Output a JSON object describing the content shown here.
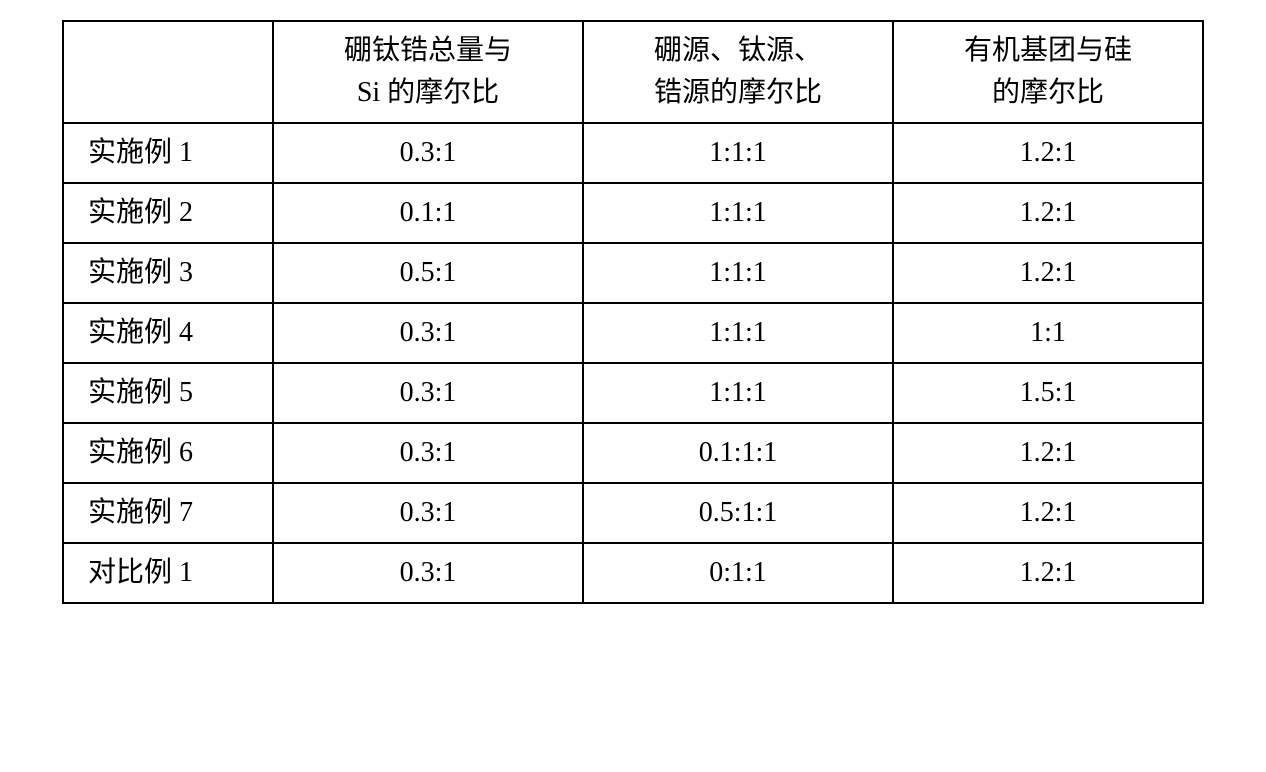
{
  "table": {
    "columns": [
      {
        "header_line1": "",
        "header_line2": ""
      },
      {
        "header_line1": "硼钛锆总量与",
        "header_line2": "Si 的摩尔比"
      },
      {
        "header_line1": "硼源、钛源、",
        "header_line2": "锆源的摩尔比"
      },
      {
        "header_line1": "有机基团与硅",
        "header_line2": "的摩尔比"
      }
    ],
    "rows": [
      {
        "label": "实施例 1",
        "c1": "0.3:1",
        "c2": "1:1:1",
        "c3": "1.2:1"
      },
      {
        "label": "实施例 2",
        "c1": "0.1:1",
        "c2": "1:1:1",
        "c3": "1.2:1"
      },
      {
        "label": "实施例 3",
        "c1": "0.5:1",
        "c2": "1:1:1",
        "c3": "1.2:1"
      },
      {
        "label": "实施例 4",
        "c1": "0.3:1",
        "c2": "1:1:1",
        "c3": "1:1"
      },
      {
        "label": "实施例 5",
        "c1": "0.3:1",
        "c2": "1:1:1",
        "c3": "1.5:1"
      },
      {
        "label": "实施例 6",
        "c1": "0.3:1",
        "c2": "0.1:1:1",
        "c3": "1.2:1"
      },
      {
        "label": "实施例 7",
        "c1": "0.3:1",
        "c2": "0.5:1:1",
        "c3": "1.2:1"
      },
      {
        "label": "对比例 1",
        "c1": "0.3:1",
        "c2": "0:1:1",
        "c3": "1.2:1"
      }
    ],
    "border_color": "#000000",
    "background_color": "#ffffff",
    "font_size": 28,
    "font_family": "SimSun"
  }
}
